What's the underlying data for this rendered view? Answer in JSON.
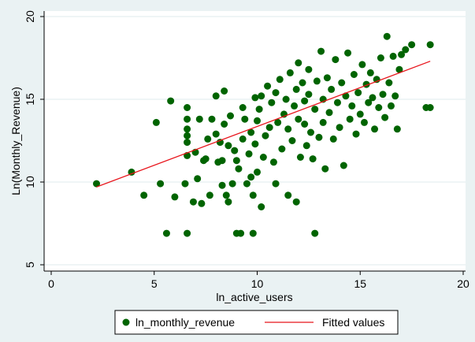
{
  "chart_data": {
    "type": "scatter",
    "xlabel": "ln_active_users",
    "ylabel": "Ln(Monthly_Revenue)",
    "xlim": [
      0,
      20
    ],
    "ylim": [
      5,
      20
    ],
    "x_ticks": [
      0,
      5,
      10,
      15,
      20
    ],
    "y_ticks": [
      5,
      10,
      15,
      20
    ],
    "grid": "horizontal",
    "legend_position": "bottom",
    "colors": {
      "points": "#006400",
      "fit": "#e8141b",
      "background": "#eaf2f3",
      "plot_bg": "#ffffff"
    },
    "series": [
      {
        "name": "ln_monthly_revenue",
        "kind": "scatter",
        "points": [
          [
            2.2,
            9.9
          ],
          [
            3.9,
            10.6
          ],
          [
            4.5,
            9.2
          ],
          [
            5.1,
            13.6
          ],
          [
            5.3,
            9.9
          ],
          [
            5.6,
            6.9
          ],
          [
            5.8,
            14.9
          ],
          [
            6.0,
            9.1
          ],
          [
            6.6,
            6.9
          ],
          [
            6.5,
            9.9
          ],
          [
            6.6,
            11.6
          ],
          [
            6.6,
            12.4
          ],
          [
            6.6,
            12.8
          ],
          [
            6.6,
            13.2
          ],
          [
            6.6,
            13.8
          ],
          [
            6.6,
            14.5
          ],
          [
            6.9,
            8.8
          ],
          [
            7.1,
            10.2
          ],
          [
            7.0,
            11.8
          ],
          [
            7.2,
            13.8
          ],
          [
            7.3,
            8.7
          ],
          [
            7.4,
            11.3
          ],
          [
            7.5,
            11.4
          ],
          [
            7.6,
            12.6
          ],
          [
            7.7,
            9.2
          ],
          [
            7.8,
            13.8
          ],
          [
            8.0,
            12.9
          ],
          [
            8.0,
            15.2
          ],
          [
            8.1,
            11.2
          ],
          [
            8.2,
            12.4
          ],
          [
            8.3,
            11.3
          ],
          [
            8.3,
            9.8
          ],
          [
            8.4,
            15.5
          ],
          [
            8.4,
            13.5
          ],
          [
            8.5,
            9.2
          ],
          [
            8.6,
            8.8
          ],
          [
            8.6,
            12.2
          ],
          [
            8.7,
            14.0
          ],
          [
            8.8,
            9.9
          ],
          [
            8.9,
            11.9
          ],
          [
            9.0,
            11.3
          ],
          [
            9.0,
            6.9
          ],
          [
            9.2,
            6.9
          ],
          [
            9.1,
            10.8
          ],
          [
            9.3,
            12.6
          ],
          [
            9.3,
            14.5
          ],
          [
            9.4,
            13.8
          ],
          [
            9.5,
            9.9
          ],
          [
            9.6,
            11.7
          ],
          [
            9.7,
            10.3
          ],
          [
            9.7,
            13.0
          ],
          [
            9.8,
            9.2
          ],
          [
            9.8,
            6.9
          ],
          [
            9.9,
            15.1
          ],
          [
            9.9,
            12.3
          ],
          [
            10.0,
            10.6
          ],
          [
            10.0,
            13.7
          ],
          [
            10.1,
            14.4
          ],
          [
            10.2,
            8.5
          ],
          [
            10.2,
            15.2
          ],
          [
            10.3,
            11.5
          ],
          [
            10.4,
            12.8
          ],
          [
            10.5,
            15.8
          ],
          [
            10.6,
            13.3
          ],
          [
            10.7,
            14.8
          ],
          [
            10.8,
            11.2
          ],
          [
            10.9,
            15.4
          ],
          [
            10.9,
            9.9
          ],
          [
            11.0,
            13.6
          ],
          [
            11.1,
            16.2
          ],
          [
            11.2,
            12.0
          ],
          [
            11.3,
            14.1
          ],
          [
            11.4,
            15.0
          ],
          [
            11.5,
            9.2
          ],
          [
            11.5,
            13.2
          ],
          [
            11.6,
            16.6
          ],
          [
            11.7,
            12.5
          ],
          [
            11.8,
            14.6
          ],
          [
            11.9,
            8.8
          ],
          [
            11.9,
            15.6
          ],
          [
            12.0,
            17.2
          ],
          [
            12.0,
            13.8
          ],
          [
            12.1,
            11.5
          ],
          [
            12.2,
            16.0
          ],
          [
            12.3,
            13.5
          ],
          [
            12.3,
            14.9
          ],
          [
            12.4,
            12.2
          ],
          [
            12.5,
            16.8
          ],
          [
            12.5,
            15.3
          ],
          [
            12.6,
            13.0
          ],
          [
            12.7,
            11.4
          ],
          [
            12.8,
            6.9
          ],
          [
            12.8,
            14.4
          ],
          [
            12.9,
            16.1
          ],
          [
            13.0,
            12.7
          ],
          [
            13.1,
            17.9
          ],
          [
            13.2,
            15.0
          ],
          [
            13.2,
            13.6
          ],
          [
            13.3,
            10.8
          ],
          [
            13.4,
            16.3
          ],
          [
            13.5,
            14.2
          ],
          [
            13.6,
            15.6
          ],
          [
            13.7,
            12.6
          ],
          [
            13.8,
            17.4
          ],
          [
            13.9,
            14.8
          ],
          [
            14.0,
            13.3
          ],
          [
            14.1,
            16.0
          ],
          [
            14.2,
            11.0
          ],
          [
            14.3,
            15.2
          ],
          [
            14.4,
            17.8
          ],
          [
            14.5,
            13.8
          ],
          [
            14.6,
            14.6
          ],
          [
            14.7,
            16.5
          ],
          [
            14.8,
            12.9
          ],
          [
            14.9,
            15.4
          ],
          [
            15.0,
            14.1
          ],
          [
            15.1,
            17.1
          ],
          [
            15.2,
            13.6
          ],
          [
            15.3,
            15.9
          ],
          [
            15.4,
            14.8
          ],
          [
            15.5,
            16.6
          ],
          [
            15.6,
            15.1
          ],
          [
            15.7,
            13.2
          ],
          [
            15.8,
            16.2
          ],
          [
            15.9,
            14.5
          ],
          [
            16.0,
            17.5
          ],
          [
            16.1,
            15.3
          ],
          [
            16.2,
            13.9
          ],
          [
            16.3,
            18.8
          ],
          [
            16.4,
            16.0
          ],
          [
            16.5,
            14.6
          ],
          [
            16.6,
            17.6
          ],
          [
            16.7,
            15.2
          ],
          [
            16.8,
            13.2
          ],
          [
            16.9,
            16.8
          ],
          [
            17.0,
            17.7
          ],
          [
            17.2,
            18.0
          ],
          [
            17.5,
            18.3
          ],
          [
            18.2,
            14.5
          ],
          [
            18.4,
            14.5
          ],
          [
            18.4,
            18.3
          ]
        ]
      },
      {
        "name": "Fitted values",
        "kind": "line",
        "points": [
          [
            2.2,
            9.7
          ],
          [
            18.4,
            17.3
          ]
        ]
      }
    ]
  }
}
